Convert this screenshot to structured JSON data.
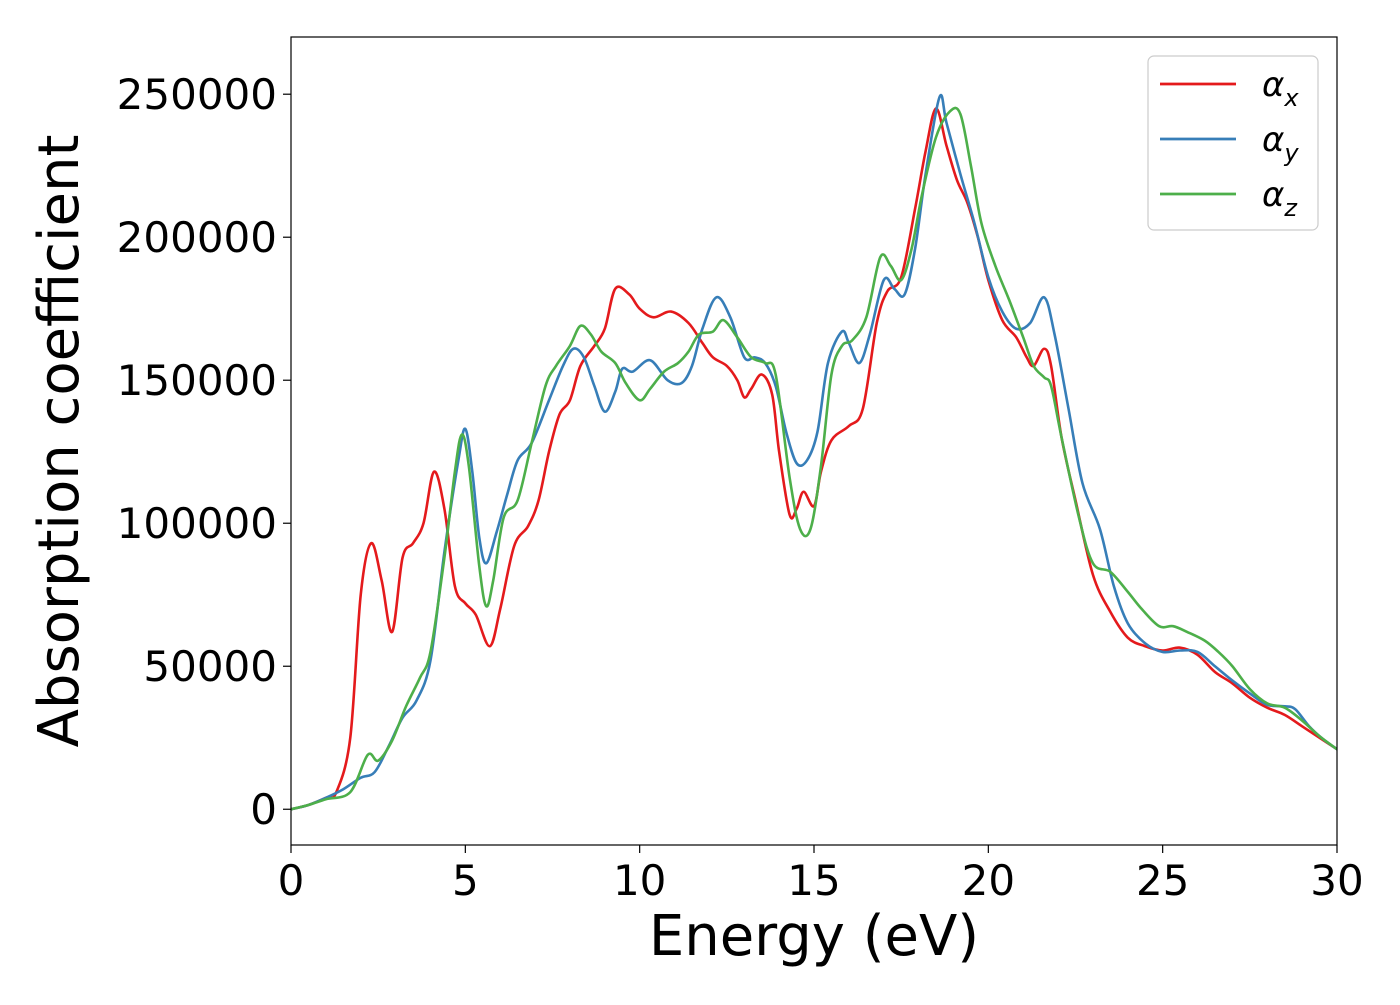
{
  "chart_data": {
    "type": "line",
    "xlabel": "Energy (eV)",
    "ylabel": "Absorption coefficient",
    "xlim": [
      0,
      30
    ],
    "ylim": [
      -12500,
      270000
    ],
    "xticks": [
      0,
      5,
      10,
      15,
      20,
      25,
      30
    ],
    "yticks": [
      0,
      50000,
      100000,
      150000,
      200000,
      250000
    ],
    "grid": false,
    "legend_position": "top-right",
    "series": [
      {
        "name": "αx",
        "name_base": "α",
        "name_sub": "x",
        "color": "#e41a1c",
        "points": [
          [
            0,
            0
          ],
          [
            0.5,
            1500
          ],
          [
            1.0,
            4000
          ],
          [
            1.3,
            6000
          ],
          [
            1.7,
            25000
          ],
          [
            2.0,
            75000
          ],
          [
            2.3,
            93000
          ],
          [
            2.6,
            80000
          ],
          [
            2.9,
            62000
          ],
          [
            3.2,
            88000
          ],
          [
            3.5,
            93000
          ],
          [
            3.8,
            100000
          ],
          [
            4.1,
            118000
          ],
          [
            4.4,
            105000
          ],
          [
            4.7,
            78000
          ],
          [
            5.0,
            72000
          ],
          [
            5.3,
            68000
          ],
          [
            5.7,
            57000
          ],
          [
            6.0,
            70000
          ],
          [
            6.4,
            92000
          ],
          [
            6.8,
            99000
          ],
          [
            7.1,
            108000
          ],
          [
            7.4,
            125000
          ],
          [
            7.7,
            138000
          ],
          [
            8.0,
            143000
          ],
          [
            8.3,
            155000
          ],
          [
            8.7,
            162000
          ],
          [
            9.0,
            168000
          ],
          [
            9.3,
            182000
          ],
          [
            9.7,
            180000
          ],
          [
            10.0,
            175000
          ],
          [
            10.4,
            172000
          ],
          [
            10.9,
            174000
          ],
          [
            11.4,
            170000
          ],
          [
            11.8,
            163000
          ],
          [
            12.1,
            158000
          ],
          [
            12.5,
            155000
          ],
          [
            12.8,
            150000
          ],
          [
            13.0,
            144000
          ],
          [
            13.2,
            147000
          ],
          [
            13.5,
            152000
          ],
          [
            13.8,
            145000
          ],
          [
            14.0,
            125000
          ],
          [
            14.3,
            103000
          ],
          [
            14.5,
            105000
          ],
          [
            14.7,
            111000
          ],
          [
            15.0,
            106000
          ],
          [
            15.2,
            118000
          ],
          [
            15.5,
            129000
          ],
          [
            16.0,
            134000
          ],
          [
            16.4,
            140000
          ],
          [
            16.8,
            170000
          ],
          [
            17.1,
            181000
          ],
          [
            17.5,
            186000
          ],
          [
            17.9,
            210000
          ],
          [
            18.2,
            230000
          ],
          [
            18.5,
            245000
          ],
          [
            18.8,
            232000
          ],
          [
            19.1,
            220000
          ],
          [
            19.4,
            212000
          ],
          [
            19.7,
            200000
          ],
          [
            20.0,
            185000
          ],
          [
            20.4,
            171000
          ],
          [
            20.8,
            165000
          ],
          [
            21.1,
            158000
          ],
          [
            21.3,
            155000
          ],
          [
            21.6,
            161000
          ],
          [
            21.8,
            155000
          ],
          [
            22.1,
            130000
          ],
          [
            22.5,
            108000
          ],
          [
            23.0,
            82000
          ],
          [
            23.5,
            69000
          ],
          [
            24.0,
            60000
          ],
          [
            24.5,
            57000
          ],
          [
            25.0,
            55500
          ],
          [
            25.5,
            56500
          ],
          [
            26.0,
            54000
          ],
          [
            26.5,
            48000
          ],
          [
            27.0,
            44000
          ],
          [
            27.5,
            39000
          ],
          [
            28.0,
            35500
          ],
          [
            28.5,
            33000
          ],
          [
            29.0,
            29000
          ],
          [
            29.5,
            25000
          ],
          [
            30.0,
            21000
          ]
        ]
      },
      {
        "name": "αy",
        "name_base": "α",
        "name_sub": "y",
        "color": "#377eb8",
        "points": [
          [
            0,
            0
          ],
          [
            0.5,
            1500
          ],
          [
            1.0,
            4000
          ],
          [
            1.5,
            7000
          ],
          [
            2.0,
            11000
          ],
          [
            2.4,
            13000
          ],
          [
            2.8,
            22000
          ],
          [
            3.2,
            32000
          ],
          [
            3.6,
            38000
          ],
          [
            4.0,
            52000
          ],
          [
            4.4,
            90000
          ],
          [
            4.8,
            122000
          ],
          [
            5.0,
            133000
          ],
          [
            5.2,
            118000
          ],
          [
            5.4,
            95000
          ],
          [
            5.6,
            86000
          ],
          [
            5.9,
            97000
          ],
          [
            6.2,
            110000
          ],
          [
            6.5,
            122000
          ],
          [
            6.9,
            128000
          ],
          [
            7.4,
            143000
          ],
          [
            7.8,
            155000
          ],
          [
            8.1,
            161000
          ],
          [
            8.4,
            158000
          ],
          [
            8.7,
            148000
          ],
          [
            9.0,
            139000
          ],
          [
            9.3,
            146000
          ],
          [
            9.5,
            154000
          ],
          [
            9.8,
            153000
          ],
          [
            10.3,
            157000
          ],
          [
            10.8,
            150000
          ],
          [
            11.2,
            149000
          ],
          [
            11.5,
            155000
          ],
          [
            11.8,
            168000
          ],
          [
            12.2,
            179000
          ],
          [
            12.6,
            172000
          ],
          [
            13.0,
            158000
          ],
          [
            13.3,
            158000
          ],
          [
            13.6,
            156000
          ],
          [
            13.9,
            148000
          ],
          [
            14.2,
            132000
          ],
          [
            14.5,
            121000
          ],
          [
            14.8,
            122000
          ],
          [
            15.1,
            132000
          ],
          [
            15.4,
            156000
          ],
          [
            15.8,
            167000
          ],
          [
            16.0,
            163000
          ],
          [
            16.3,
            156000
          ],
          [
            16.6,
            166000
          ],
          [
            17.0,
            185000
          ],
          [
            17.3,
            182000
          ],
          [
            17.6,
            180000
          ],
          [
            17.9,
            196000
          ],
          [
            18.2,
            222000
          ],
          [
            18.6,
            249000
          ],
          [
            18.8,
            240000
          ],
          [
            19.2,
            222000
          ],
          [
            19.6,
            205000
          ],
          [
            20.0,
            186000
          ],
          [
            20.4,
            174000
          ],
          [
            20.8,
            168000
          ],
          [
            21.2,
            170000
          ],
          [
            21.6,
            179000
          ],
          [
            21.9,
            166000
          ],
          [
            22.3,
            140000
          ],
          [
            22.7,
            114000
          ],
          [
            23.2,
            98000
          ],
          [
            23.6,
            78000
          ],
          [
            24.0,
            65000
          ],
          [
            24.5,
            58000
          ],
          [
            25.0,
            55000
          ],
          [
            25.5,
            55500
          ],
          [
            26.0,
            55000
          ],
          [
            26.5,
            50000
          ],
          [
            27.0,
            45000
          ],
          [
            27.5,
            40500
          ],
          [
            28.0,
            36500
          ],
          [
            28.5,
            36000
          ],
          [
            28.8,
            35000
          ],
          [
            29.2,
            29000
          ],
          [
            29.6,
            24500
          ],
          [
            30.0,
            21000
          ]
        ]
      },
      {
        "name": "αz",
        "name_base": "α",
        "name_sub": "z",
        "color": "#4daf4a",
        "points": [
          [
            0,
            0
          ],
          [
            0.5,
            1500
          ],
          [
            1.0,
            3500
          ],
          [
            1.7,
            6000
          ],
          [
            2.2,
            19000
          ],
          [
            2.5,
            17000
          ],
          [
            2.9,
            24000
          ],
          [
            3.3,
            36000
          ],
          [
            3.7,
            46000
          ],
          [
            4.0,
            55000
          ],
          [
            4.4,
            88000
          ],
          [
            4.7,
            118000
          ],
          [
            4.9,
            131000
          ],
          [
            5.1,
            120000
          ],
          [
            5.4,
            85000
          ],
          [
            5.6,
            71000
          ],
          [
            5.8,
            80000
          ],
          [
            6.1,
            102000
          ],
          [
            6.5,
            108000
          ],
          [
            6.9,
            128000
          ],
          [
            7.3,
            148000
          ],
          [
            7.6,
            155000
          ],
          [
            8.0,
            162000
          ],
          [
            8.3,
            169000
          ],
          [
            8.6,
            166000
          ],
          [
            8.9,
            160000
          ],
          [
            9.3,
            156000
          ],
          [
            9.6,
            149000
          ],
          [
            10.0,
            143000
          ],
          [
            10.3,
            147000
          ],
          [
            10.7,
            153000
          ],
          [
            11.1,
            156000
          ],
          [
            11.4,
            160000
          ],
          [
            11.7,
            166000
          ],
          [
            12.1,
            167000
          ],
          [
            12.4,
            171000
          ],
          [
            12.8,
            165000
          ],
          [
            13.2,
            158000
          ],
          [
            13.6,
            156000
          ],
          [
            13.9,
            152000
          ],
          [
            14.3,
            116000
          ],
          [
            14.6,
            98000
          ],
          [
            14.9,
            98000
          ],
          [
            15.2,
            120000
          ],
          [
            15.5,
            152000
          ],
          [
            15.8,
            162000
          ],
          [
            16.1,
            164000
          ],
          [
            16.5,
            172000
          ],
          [
            16.9,
            193000
          ],
          [
            17.2,
            190000
          ],
          [
            17.5,
            185000
          ],
          [
            17.8,
            196000
          ],
          [
            18.1,
            215000
          ],
          [
            18.5,
            235000
          ],
          [
            18.9,
            244000
          ],
          [
            19.2,
            243000
          ],
          [
            19.5,
            225000
          ],
          [
            19.8,
            205000
          ],
          [
            20.2,
            190000
          ],
          [
            20.6,
            178000
          ],
          [
            21.0,
            165000
          ],
          [
            21.3,
            155000
          ],
          [
            21.6,
            151000
          ],
          [
            21.8,
            148000
          ],
          [
            22.1,
            130000
          ],
          [
            22.6,
            102000
          ],
          [
            23.0,
            86000
          ],
          [
            23.5,
            83000
          ],
          [
            24.0,
            76000
          ],
          [
            24.4,
            70000
          ],
          [
            24.9,
            64000
          ],
          [
            25.3,
            64000
          ],
          [
            25.7,
            62000
          ],
          [
            26.2,
            59000
          ],
          [
            26.6,
            55000
          ],
          [
            27.0,
            50000
          ],
          [
            27.5,
            42000
          ],
          [
            28.0,
            37000
          ],
          [
            28.5,
            35500
          ],
          [
            29.0,
            31000
          ],
          [
            29.5,
            25500
          ],
          [
            30.0,
            21000
          ]
        ]
      }
    ]
  }
}
